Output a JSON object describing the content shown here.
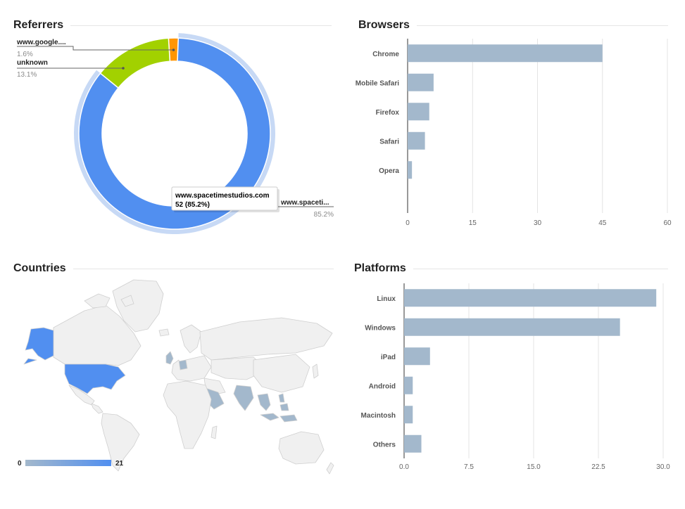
{
  "panels": {
    "referrers": {
      "title": "Referrers"
    },
    "browsers": {
      "title": "Browsers"
    },
    "countries": {
      "title": "Countries"
    },
    "platforms": {
      "title": "Platforms"
    }
  },
  "chart_data": [
    {
      "id": "referrers",
      "type": "pie",
      "title": "Referrers",
      "slices": [
        {
          "label": "www.spacetimestudios.com",
          "short_label": "www.spaceti...",
          "value": 52,
          "percent": "85.2%",
          "color": "#518ff0"
        },
        {
          "label": "unknown",
          "short_label": "unknown",
          "value": 8,
          "percent": "13.1%",
          "color": "#a2d100"
        },
        {
          "label": "www.google.com",
          "short_label": "www.google....",
          "value": 1,
          "percent": "1.6%",
          "color": "#ff9603"
        }
      ],
      "tooltip": {
        "title": "www.spacetimestudios.com",
        "value_text": "52 (85.2%)"
      },
      "selected_ring_color": "#c7d9f5"
    },
    {
      "id": "browsers",
      "type": "bar",
      "orientation": "horizontal",
      "title": "Browsers",
      "categories": [
        "Chrome",
        "Mobile Safari",
        "Firefox",
        "Safari",
        "Opera"
      ],
      "values": [
        45,
        6,
        5,
        4,
        1
      ],
      "xlim": [
        0,
        60
      ],
      "ticks": [
        "0",
        "15",
        "30",
        "45",
        "60"
      ],
      "bar_color": "#a3b8cc",
      "grid": true
    },
    {
      "id": "countries",
      "type": "heatmap",
      "title": "Countries",
      "legend": {
        "min": "0",
        "max": "21",
        "min_color": "#a3b8cc",
        "max_color": "#518ff0"
      },
      "regions": [
        {
          "name": "United States",
          "level": "max"
        },
        {
          "name": "Alaska",
          "level": "max"
        },
        {
          "name": "United Kingdom",
          "level": "low"
        },
        {
          "name": "Germany",
          "level": "low"
        },
        {
          "name": "Saudi Arabia",
          "level": "low"
        },
        {
          "name": "India",
          "level": "low"
        },
        {
          "name": "Thailand",
          "level": "low"
        },
        {
          "name": "Malaysia",
          "level": "low"
        },
        {
          "name": "Indonesia",
          "level": "low"
        },
        {
          "name": "Philippines",
          "level": "low"
        }
      ]
    },
    {
      "id": "platforms",
      "type": "bar",
      "orientation": "horizontal",
      "title": "Platforms",
      "categories": [
        "Linux",
        "Windows",
        "iPad",
        "Android",
        "Macintosh",
        "Others"
      ],
      "values": [
        29.2,
        25,
        3,
        1,
        1,
        2
      ],
      "xlim": [
        0,
        30
      ],
      "ticks": [
        "0.0",
        "7.5",
        "15.0",
        "22.5",
        "30.0"
      ],
      "bar_color": "#a3b8cc",
      "grid": true
    }
  ]
}
